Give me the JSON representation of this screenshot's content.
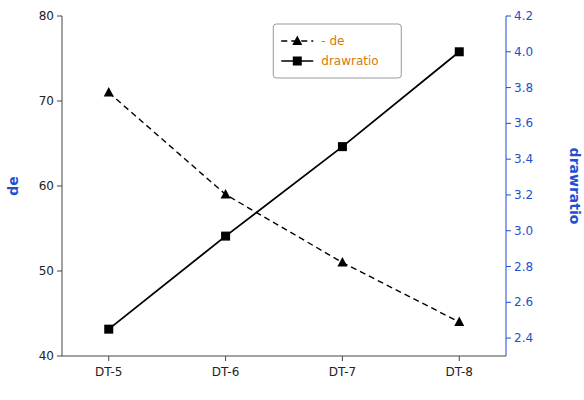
{
  "chart_data": {
    "type": "line",
    "categories": [
      "DT-5",
      "DT-6",
      "DT-7",
      "DT-8"
    ],
    "series": [
      {
        "name": "- de",
        "color": "#000000",
        "values": [
          71,
          59,
          51,
          44
        ],
        "line_style": "dashed",
        "marker": "triangle"
      },
      {
        "name": "drawratio",
        "color": "#000000",
        "values": [
          2.45,
          2.97,
          3.47,
          4.0
        ],
        "axis": "y2",
        "line_style": "solid",
        "marker": "square"
      }
    ],
    "y_label": "de",
    "y2_label": "drawratio",
    "ylim": [
      40,
      80
    ],
    "yticks": [
      40,
      50,
      60,
      70,
      80
    ],
    "y2lim": [
      2.3,
      4.2
    ],
    "y2ticks": [
      2.4,
      2.6,
      2.8,
      {
        "value": 3.0,
        "label": "3.0"
      },
      3.2,
      3.4,
      3.6,
      3.8,
      {
        "value": 4.0,
        "label": "4.0"
      },
      4.2
    ],
    "grid": false,
    "legend": "top"
  }
}
